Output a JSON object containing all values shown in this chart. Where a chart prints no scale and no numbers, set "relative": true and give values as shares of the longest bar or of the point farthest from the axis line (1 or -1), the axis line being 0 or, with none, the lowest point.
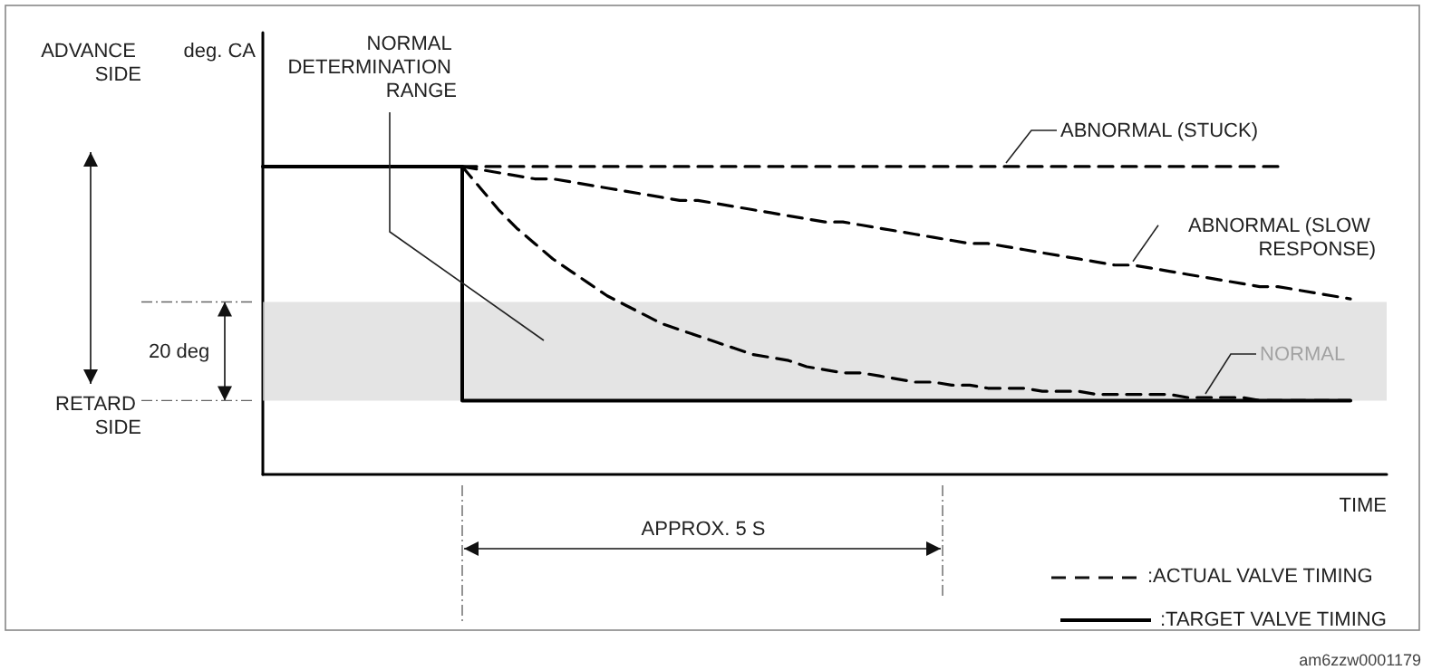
{
  "chart_data": {
    "type": "line",
    "relative": true,
    "xlabel": "TIME",
    "marker": "none",
    "grid": false,
    "legend": "bottom right",
    "categories": [
      null,
      null,
      null,
      null,
      null,
      null,
      null,
      null,
      null,
      null,
      null,
      null,
      null,
      null,
      null,
      null,
      null,
      null,
      null,
      null,
      null,
      null,
      null,
      null,
      null,
      null,
      null,
      null,
      null,
      null,
      null,
      null,
      null,
      null,
      null,
      null,
      null,
      null,
      null,
      null,
      null,
      null,
      null,
      null,
      null,
      null,
      null,
      null,
      null,
      null,
      null,
      null,
      null,
      null,
      null,
      null,
      null,
      null,
      null,
      null,
      null,
      null,
      null
    ],
    "series": [
      {
        "name": ":TARGET VALVE TIMING",
        "type": "step",
        "color": "#000000",
        "line_style": "solid",
        "values": [
          1,
          1,
          1,
          1,
          1,
          1,
          1,
          1,
          1,
          1,
          1,
          1,
          0.24,
          0.24,
          0.24,
          0.24,
          0.24,
          0.24,
          0.24,
          0.24,
          0.24,
          0.24,
          0.24,
          0.24,
          0.24,
          0.24,
          0.24,
          0.24,
          0.24,
          0.24,
          0.24,
          0.24,
          0.24,
          0.24,
          0.24,
          0.24,
          0.24,
          0.24,
          0.24,
          0.24,
          0.24,
          0.24,
          0.24,
          0.24,
          0.24,
          0.24,
          0.24,
          0.24,
          0.24,
          0.24,
          0.24,
          0.24,
          0.24,
          0.24,
          0.24,
          0.24,
          0.24,
          0.24,
          0.24,
          0.24,
          0.24,
          null,
          null
        ]
      },
      {
        "name": "ABNORMAL (STUCK)",
        "color": "#000000",
        "line_style": "dashed",
        "values": [
          null,
          null,
          null,
          null,
          null,
          null,
          null,
          null,
          null,
          null,
          null,
          1,
          1,
          1,
          1,
          1,
          1,
          1,
          1,
          1,
          1,
          1,
          1,
          1,
          1,
          1,
          1,
          1,
          1,
          1,
          1,
          1,
          1,
          1,
          1,
          1,
          1,
          1,
          1,
          1,
          1,
          1,
          1,
          1,
          1,
          1,
          1,
          1,
          1,
          1,
          1,
          1,
          1,
          1,
          1,
          1,
          1,
          null,
          null,
          null,
          null,
          null,
          null
        ]
      },
      {
        "name": "ABNORMAL (SLOW RESPONSE)",
        "color": "#000000",
        "line_style": "dashed",
        "values": [
          null,
          null,
          null,
          null,
          null,
          null,
          null,
          null,
          null,
          null,
          null,
          1.0,
          0.99,
          0.98,
          0.97,
          0.96,
          0.96,
          0.95,
          0.94,
          0.93,
          0.92,
          0.91,
          0.9,
          0.89,
          0.89,
          0.88,
          0.87,
          0.86,
          0.85,
          0.84,
          0.83,
          0.82,
          0.82,
          0.81,
          0.8,
          0.79,
          0.78,
          0.77,
          0.76,
          0.75,
          0.75,
          0.74,
          0.73,
          0.72,
          0.71,
          0.7,
          0.69,
          0.68,
          0.68,
          0.67,
          0.66,
          0.65,
          0.64,
          0.63,
          0.62,
          0.61,
          0.61,
          0.6,
          0.59,
          0.58,
          0.57,
          null,
          null
        ]
      },
      {
        "name": "NORMAL",
        "color": "#000000",
        "line_style": "dashed",
        "values": [
          null,
          null,
          null,
          null,
          null,
          null,
          null,
          null,
          null,
          null,
          null,
          1.0,
          0.93,
          0.86,
          0.8,
          0.75,
          0.7,
          0.66,
          0.62,
          0.58,
          0.55,
          0.52,
          0.49,
          0.47,
          0.45,
          0.43,
          0.41,
          0.39,
          0.38,
          0.37,
          0.35,
          0.34,
          0.33,
          0.33,
          0.32,
          0.31,
          0.3,
          0.3,
          0.29,
          0.29,
          0.28,
          0.28,
          0.28,
          0.27,
          0.27,
          0.27,
          0.26,
          0.26,
          0.26,
          0.26,
          0.26,
          0.25,
          0.25,
          0.25,
          0.25,
          0.24,
          0.24,
          0.24,
          0.24,
          0.24,
          0.24,
          null,
          null
        ]
      }
    ],
    "bands": [
      {
        "axis": "y",
        "from": 0.24,
        "to": 0.56,
        "label": "NORMAL DETERMINATION RANGE",
        "color": "#d9d9d9"
      }
    ],
    "annotations": [
      "ADVANCE SIDE",
      "RETARD SIDE",
      "20 deg",
      "APPROX. 5 S",
      ":ACTUAL VALVE TIMING",
      "am6zzw0001179",
      "deg. CA"
    ]
  }
}
